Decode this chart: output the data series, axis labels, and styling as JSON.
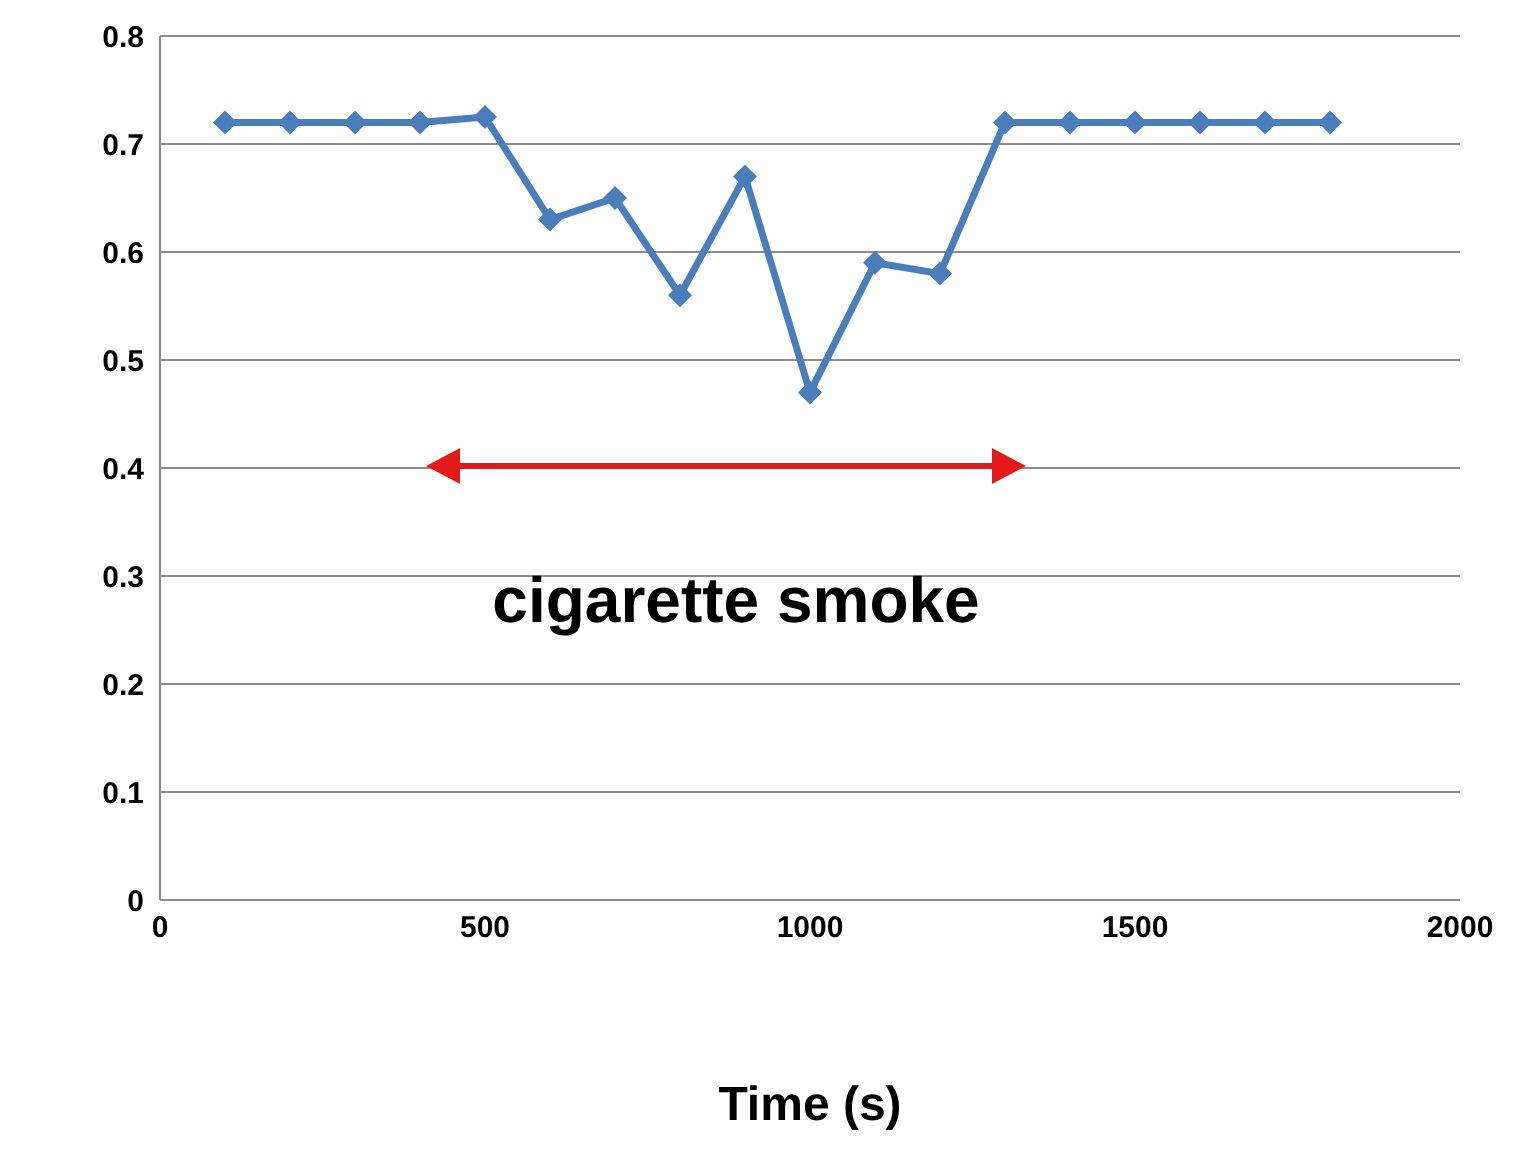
{
  "chart_data": {
    "type": "line",
    "xlabel": "Time (s)",
    "x": [
      100,
      200,
      300,
      400,
      500,
      600,
      700,
      800,
      900,
      1000,
      1100,
      1200,
      1300,
      1400,
      1500,
      1600,
      1700,
      1800
    ],
    "series": [
      {
        "color": "#4a7ebb",
        "values": [
          0.72,
          0.72,
          0.72,
          0.72,
          0.725,
          0.63,
          0.65,
          0.56,
          0.67,
          0.47,
          0.59,
          0.58,
          0.72,
          0.72,
          0.72,
          0.72,
          0.72,
          0.72
        ]
      }
    ],
    "xlim": [
      0,
      2000
    ],
    "xticks": [
      0,
      500,
      1000,
      1500,
      2000
    ],
    "ylim": [
      0,
      0.8
    ],
    "yticks": [
      0,
      0.1,
      0.2,
      0.3,
      0.4,
      0.5,
      0.6,
      0.7,
      0.8
    ],
    "grid": "y",
    "marker": "diamond",
    "line_style": "solid",
    "legend": false,
    "annotations": [
      "cigarette smoke"
    ]
  }
}
